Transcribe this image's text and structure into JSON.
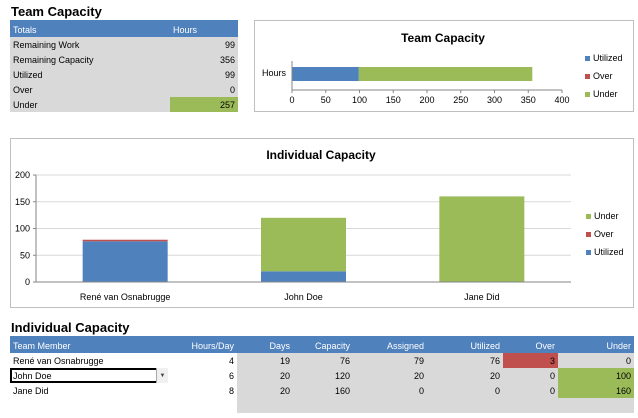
{
  "team_capacity_table": {
    "title": "Team Capacity",
    "headers": [
      "Totals",
      "Hours"
    ],
    "rows": [
      {
        "label": "Remaining Work",
        "value": "99"
      },
      {
        "label": "Remaining Capacity",
        "value": "356"
      },
      {
        "label": "Utilized",
        "value": "99"
      },
      {
        "label": "Over",
        "value": "0"
      },
      {
        "label": "Under",
        "value": "257"
      }
    ]
  },
  "individual_capacity_table": {
    "title": "Individual Capacity",
    "headers": [
      "Team Member",
      "Hours/Day",
      "Days",
      "Capacity",
      "Assigned",
      "Utilized",
      "Over",
      "Under"
    ],
    "rows": [
      [
        "René van Osnabrugge",
        "4",
        "19",
        "76",
        "79",
        "76",
        "3",
        "0"
      ],
      [
        "John Doe",
        "6",
        "20",
        "120",
        "20",
        "20",
        "0",
        "100"
      ],
      [
        "Jane Did",
        "8",
        "20",
        "160",
        "0",
        "0",
        "0",
        "160"
      ]
    ],
    "dropdown_icon": "chevron-down-icon"
  },
  "colors": {
    "header_blue": "#4f81bd",
    "utilized": "#4f81bd",
    "over": "#c0504d",
    "under": "#9bbb59",
    "shade": "#d9d9d9"
  },
  "chart_data": [
    {
      "type": "bar",
      "orientation": "horizontal",
      "stacked": true,
      "title": "Team Capacity",
      "categories": [
        "Hours"
      ],
      "series": [
        {
          "name": "Utilized",
          "values": [
            99
          ]
        },
        {
          "name": "Over",
          "values": [
            0
          ]
        },
        {
          "name": "Under",
          "values": [
            257
          ]
        }
      ],
      "xlim": [
        0,
        400
      ],
      "xticks": [
        "0",
        "50",
        "100",
        "150",
        "200",
        "250",
        "300",
        "350",
        "400"
      ],
      "legend": [
        "Utilized",
        "Over",
        "Under"
      ],
      "legend_position": "right",
      "grid": false
    },
    {
      "type": "bar",
      "orientation": "vertical",
      "stacked": true,
      "title": "Individual Capacity",
      "categories": [
        "René van Osnabrugge",
        "John Doe",
        "Jane Did"
      ],
      "series": [
        {
          "name": "Utilized",
          "values": [
            76,
            20,
            0
          ]
        },
        {
          "name": "Over",
          "values": [
            3,
            0,
            0
          ]
        },
        {
          "name": "Under",
          "values": [
            0,
            100,
            160
          ]
        }
      ],
      "ylim": [
        0,
        200
      ],
      "yticks": [
        "0",
        "50",
        "100",
        "150",
        "200"
      ],
      "legend": [
        "Under",
        "Over",
        "Utilized"
      ],
      "legend_position": "right",
      "grid": true
    }
  ]
}
